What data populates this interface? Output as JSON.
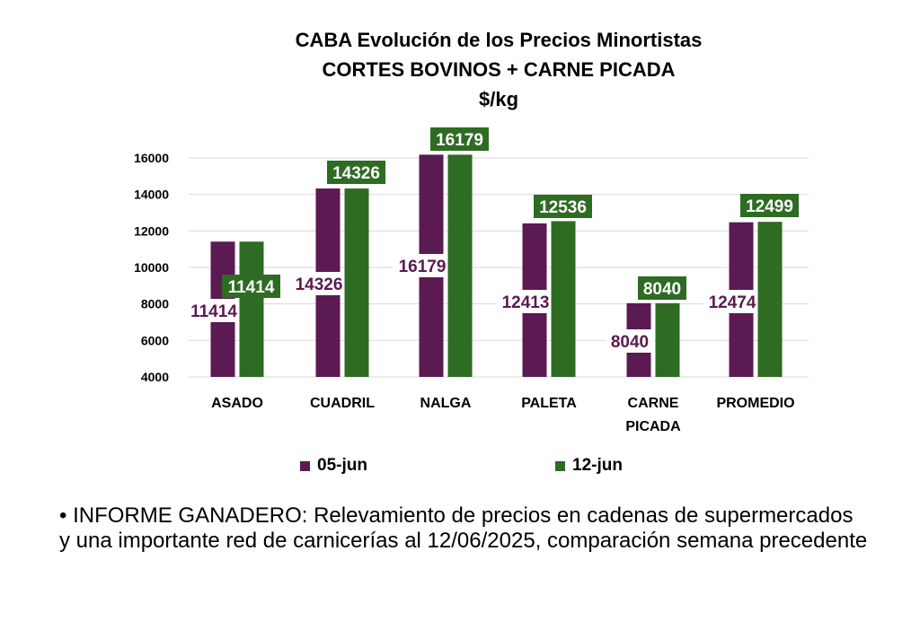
{
  "chart_data": {
    "type": "bar",
    "title": "CABA Evolución de los Precios Minortistas",
    "subtitle": "CORTES BOVINOS + CARNE PICADA",
    "unit": "$/kg",
    "categories": [
      {
        "lines": [
          "ASADO"
        ]
      },
      {
        "lines": [
          "CUADRIL"
        ]
      },
      {
        "lines": [
          "NALGA"
        ]
      },
      {
        "lines": [
          "PALETA"
        ]
      },
      {
        "lines": [
          "CARNE",
          "PICADA"
        ]
      },
      {
        "lines": [
          "PROMEDIO"
        ]
      }
    ],
    "series": [
      {
        "name": "05-jun",
        "color": "#5b1a52",
        "values": [
          11414,
          14326,
          16179,
          12413,
          8040,
          12474
        ]
      },
      {
        "name": "12-jun",
        "color": "#2e6b23",
        "values": [
          11414,
          14326,
          16179,
          12536,
          8040,
          12499
        ]
      }
    ],
    "ylim": [
      4000,
      16000
    ],
    "yticks": [
      "4000",
      "6000",
      "8000",
      "10000",
      "12000",
      "14000",
      "16000"
    ],
    "grid": true,
    "legend": "bottom"
  },
  "note": "•  INFORME GANADERO: Relevamiento de precios en cadenas de supermercados y una importante red de carnicerías al 12/06/2025, comparación semana precedente"
}
